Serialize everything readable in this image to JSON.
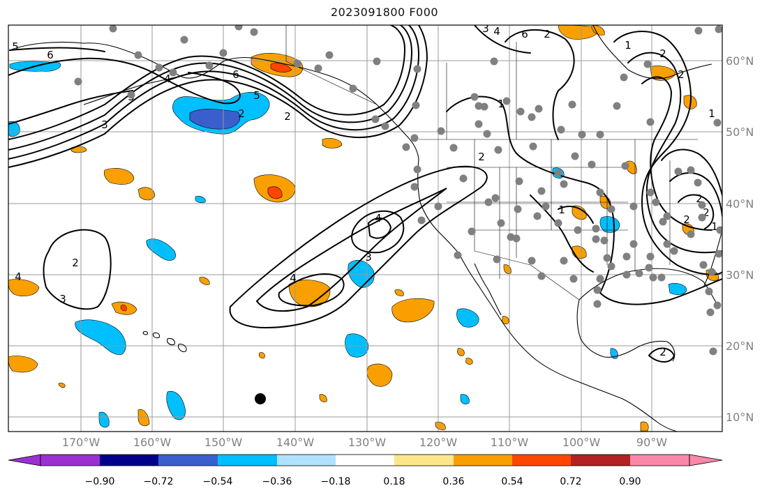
{
  "title": "2023091800 F000",
  "map": {
    "lon_labels": [
      "170°W",
      "160°W",
      "150°W",
      "140°W",
      "130°W",
      "120°W",
      "110°W",
      "100°W",
      "90°W"
    ],
    "lat_labels": [
      "60°N",
      "50°N",
      "40°N",
      "30°N",
      "20°N",
      "10°N"
    ],
    "contour_labels": [
      "5",
      "6",
      "3",
      "3",
      "4",
      "2",
      "6",
      "5",
      "2",
      "4",
      "3",
      "4",
      "2",
      "1",
      "2",
      "3",
      "4",
      "2",
      "1",
      "2",
      "2",
      "6",
      "4",
      "3",
      "2",
      "1",
      "2",
      "1",
      "2",
      "2",
      "1"
    ],
    "colors": {
      "gridline": "#9a9a9a",
      "axis_label": "#808080",
      "contour": "#000000",
      "station_dot": "#808080",
      "land_outline": "#000000"
    }
  },
  "colorbar": {
    "tick_labels": [
      "−0.90",
      "−0.72",
      "−0.54",
      "−0.36",
      "−0.18",
      "0.18",
      "0.36",
      "0.54",
      "0.72",
      "0.90"
    ],
    "colors": [
      "#9b30d2",
      "#00008b",
      "#3a5fcd",
      "#00bfff",
      "#b0e2ff",
      "#ffffff",
      "#fde68a",
      "#f9a000",
      "#ff4500",
      "#b22222",
      "#fa87aa"
    ]
  }
}
